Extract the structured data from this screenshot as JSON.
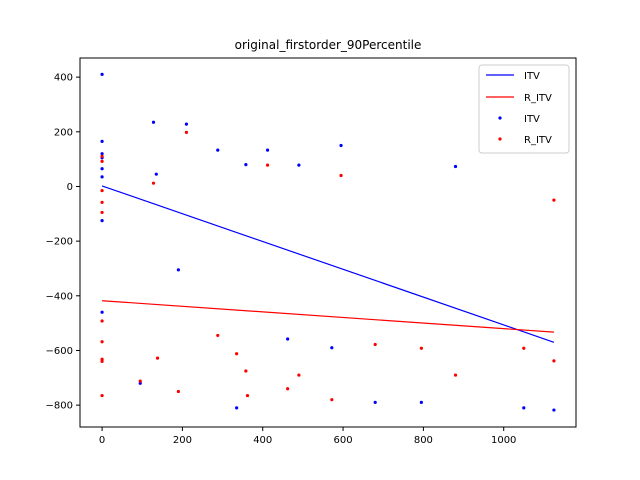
{
  "chart_data": {
    "type": "scatter",
    "title": "original_firstorder_90Percentile",
    "xlabel": "",
    "ylabel": "",
    "xlim": [
      -55,
      1180
    ],
    "ylim": [
      -880,
      470
    ],
    "xticks": [
      0,
      200,
      400,
      600,
      800,
      1000
    ],
    "yticks": [
      400,
      200,
      0,
      -200,
      -400,
      -600,
      -800
    ],
    "xtick_labels": [
      "0",
      "200",
      "400",
      "600",
      "800",
      "1000"
    ],
    "ytick_labels": [
      "400",
      "200",
      "0",
      "−200",
      "−400",
      "−600",
      "−800"
    ],
    "legend_position": "top-right",
    "lines": [
      {
        "name": "ITV",
        "color": "#0000ff",
        "x": [
          0,
          1125
        ],
        "y": [
          2,
          -570
        ]
      },
      {
        "name": "R_ITV",
        "color": "#ff0000",
        "x": [
          0,
          1125
        ],
        "y": [
          -418,
          -533
        ]
      }
    ],
    "series": [
      {
        "name": "ITV",
        "color": "#0000ff",
        "points": [
          [
            0,
            410
          ],
          [
            0,
            165
          ],
          [
            0,
            120
          ],
          [
            0,
            105
          ],
          [
            0,
            65
          ],
          [
            0,
            35
          ],
          [
            0,
            -125
          ],
          [
            0,
            -460
          ],
          [
            95,
            -720
          ],
          [
            128,
            235
          ],
          [
            135,
            45
          ],
          [
            190,
            -305
          ],
          [
            210,
            228
          ],
          [
            288,
            133
          ],
          [
            335,
            -810
          ],
          [
            358,
            80
          ],
          [
            412,
            133
          ],
          [
            462,
            -558
          ],
          [
            490,
            78
          ],
          [
            572,
            -590
          ],
          [
            595,
            150
          ],
          [
            680,
            -790
          ],
          [
            795,
            -790
          ],
          [
            880,
            73
          ],
          [
            1050,
            -810
          ],
          [
            1125,
            -818
          ]
        ]
      },
      {
        "name": "R_ITV",
        "color": "#ff0000",
        "points": [
          [
            0,
            110
          ],
          [
            0,
            92
          ],
          [
            0,
            -15
          ],
          [
            0,
            -58
          ],
          [
            0,
            -95
          ],
          [
            0,
            -492
          ],
          [
            0,
            -568
          ],
          [
            0,
            -632
          ],
          [
            0,
            -640
          ],
          [
            0,
            -765
          ],
          [
            95,
            -712
          ],
          [
            128,
            12
          ],
          [
            138,
            -628
          ],
          [
            190,
            -750
          ],
          [
            210,
            198
          ],
          [
            288,
            -545
          ],
          [
            335,
            -612
          ],
          [
            358,
            -675
          ],
          [
            362,
            -765
          ],
          [
            412,
            78
          ],
          [
            462,
            -740
          ],
          [
            490,
            -690
          ],
          [
            572,
            -780
          ],
          [
            595,
            40
          ],
          [
            680,
            -578
          ],
          [
            795,
            -592
          ],
          [
            880,
            -690
          ],
          [
            1050,
            -592
          ],
          [
            1125,
            -50
          ],
          [
            1125,
            -638
          ]
        ]
      }
    ]
  }
}
